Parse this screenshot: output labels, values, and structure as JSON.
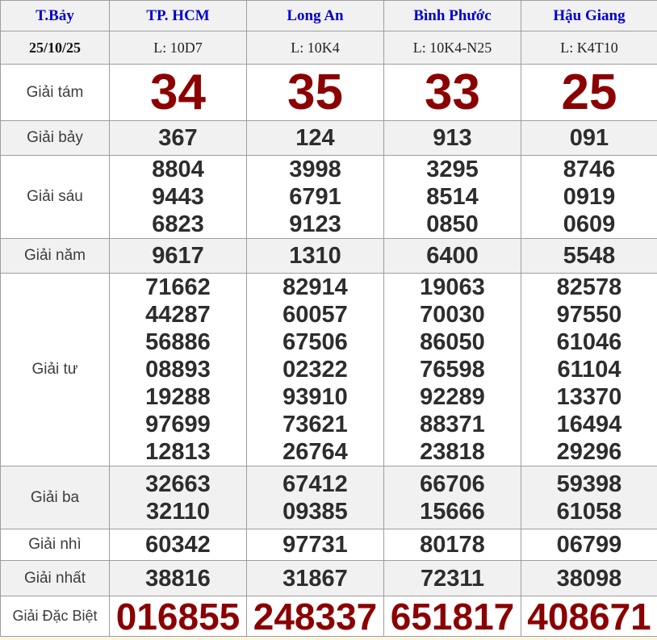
{
  "header": {
    "day": "T.Bảy",
    "stations": [
      "TP. HCM",
      "Long An",
      "Bình Phước",
      "Hậu Giang"
    ]
  },
  "date_row": {
    "date": "25/10/25",
    "codes": [
      "L: 10D7",
      "L: 10K4",
      "L: 10K4-N25",
      "L: K4T10"
    ]
  },
  "prizes": [
    {
      "key": "giai-tam",
      "label": "Giải tám",
      "values": [
        [
          "34"
        ],
        [
          "35"
        ],
        [
          "33"
        ],
        [
          "25"
        ]
      ]
    },
    {
      "key": "giai-bay",
      "label": "Giải bảy",
      "values": [
        [
          "367"
        ],
        [
          "124"
        ],
        [
          "913"
        ],
        [
          "091"
        ]
      ]
    },
    {
      "key": "giai-sau",
      "label": "Giải sáu",
      "values": [
        [
          "8804",
          "9443",
          "6823"
        ],
        [
          "3998",
          "6791",
          "9123"
        ],
        [
          "3295",
          "8514",
          "0850"
        ],
        [
          "8746",
          "0919",
          "0609"
        ]
      ]
    },
    {
      "key": "giai-nam",
      "label": "Giải năm",
      "values": [
        [
          "9617"
        ],
        [
          "1310"
        ],
        [
          "6400"
        ],
        [
          "5548"
        ]
      ]
    },
    {
      "key": "giai-tu",
      "label": "Giải tư",
      "values": [
        [
          "71662",
          "44287",
          "56886",
          "08893",
          "19288",
          "97699",
          "12813"
        ],
        [
          "82914",
          "60057",
          "67506",
          "02322",
          "93910",
          "73621",
          "26764"
        ],
        [
          "19063",
          "70030",
          "86050",
          "76598",
          "92289",
          "88371",
          "23818"
        ],
        [
          "82578",
          "97550",
          "61046",
          "61104",
          "13370",
          "16494",
          "29296"
        ]
      ]
    },
    {
      "key": "giai-ba",
      "label": "Giải ba",
      "values": [
        [
          "32663",
          "32110"
        ],
        [
          "67412",
          "09385"
        ],
        [
          "66706",
          "15666"
        ],
        [
          "59398",
          "61058"
        ]
      ]
    },
    {
      "key": "giai-nhi",
      "label": "Giải nhì",
      "values": [
        [
          "60342"
        ],
        [
          "97731"
        ],
        [
          "80178"
        ],
        [
          "06799"
        ]
      ]
    },
    {
      "key": "giai-nhat",
      "label": "Giải nhất",
      "values": [
        [
          "38816"
        ],
        [
          "31867"
        ],
        [
          "72311"
        ],
        [
          "38098"
        ]
      ]
    },
    {
      "key": "giai-dac-biet",
      "label": "Giải Đặc Biệt",
      "values": [
        [
          "016855"
        ],
        [
          "248337"
        ],
        [
          "651817"
        ],
        [
          "408671"
        ]
      ]
    }
  ],
  "colors": {
    "accent_red": "#8b0000",
    "link_blue": "#0000cc",
    "alt_row_bg": "#f1f1f1",
    "border": "#9e9e9e",
    "page_bg_strip": "#fcf5dd"
  }
}
